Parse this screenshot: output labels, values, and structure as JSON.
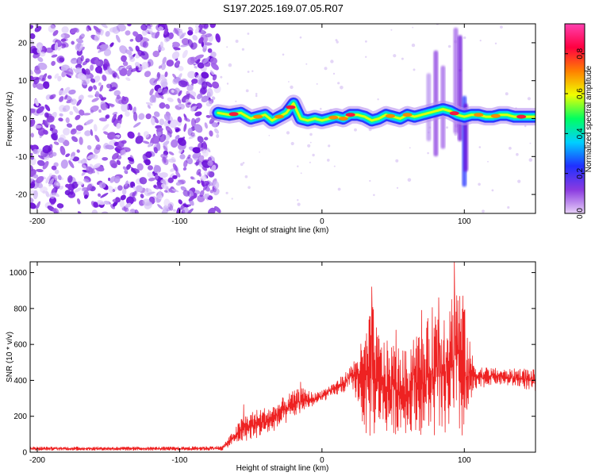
{
  "title": "S197.2025.169.07.05.R07",
  "chart_data": [
    {
      "type": "heatmap",
      "xlabel": "Height of straight line (km)",
      "ylabel": "Frequency (Hz)",
      "xlim": [
        -205,
        150
      ],
      "ylim": [
        -25,
        25
      ],
      "xticks": [
        -200,
        -100,
        0,
        100
      ],
      "yticks": [
        -20,
        -10,
        0,
        10,
        20
      ],
      "colorbar": {
        "label": "Normalized spectral amplitude",
        "range": [
          0,
          0.95
        ],
        "ticks": [
          0.0,
          0.2,
          0.4,
          0.6,
          0.8
        ],
        "tick_labels": [
          "0.0",
          "0.2",
          "0.4",
          "0.6",
          "0.8"
        ],
        "colors": [
          "#e8d0f8",
          "#8a3ae0",
          "#2030ff",
          "#00d0ff",
          "#00ff60",
          "#f0ff00",
          "#ff8000",
          "#ff0040",
          "#ff40b0"
        ]
      },
      "noise_region": {
        "x_from": -205,
        "x_to": -73
      },
      "ridge": {
        "x": [
          -73,
          -65,
          -57,
          -50,
          -45,
          -40,
          -35,
          -30,
          -25,
          -20,
          -15,
          -10,
          -5,
          0,
          5,
          10,
          15,
          20,
          25,
          30,
          35,
          40,
          45,
          50,
          55,
          60,
          65,
          70,
          75,
          80,
          85,
          90,
          95,
          100,
          105,
          110,
          115,
          120,
          125,
          130,
          135,
          140,
          145,
          150
        ],
        "y": [
          1.5,
          1.0,
          1.5,
          0.0,
          0.5,
          1.0,
          -0.5,
          0.5,
          1.5,
          4.0,
          0.0,
          -0.5,
          0.0,
          -0.5,
          0.0,
          0.5,
          0.0,
          1.0,
          1.0,
          0.5,
          -0.5,
          0.0,
          1.0,
          0.5,
          0.0,
          1.0,
          0.5,
          1.0,
          1.5,
          2.0,
          2.5,
          2.0,
          1.0,
          0.5,
          1.0,
          1.0,
          0.5,
          0.5,
          1.0,
          1.0,
          0.5,
          0.5,
          0.5,
          0.5
        ]
      }
    },
    {
      "type": "line",
      "xlabel": "Height of straight line (km)",
      "ylabel": "SNR (10 * v/v)",
      "xlim": [
        -205,
        150
      ],
      "ylim": [
        0,
        1060
      ],
      "xticks": [
        -200,
        -100,
        0,
        100
      ],
      "yticks": [
        0,
        200,
        400,
        600,
        800,
        1000
      ],
      "series": [
        {
          "color": "#ee2222",
          "envelope_x": [
            -205,
            -150,
            -100,
            -70,
            -63,
            -55,
            -45,
            -35,
            -25,
            -15,
            -5,
            5,
            15,
            20,
            25,
            30,
            35,
            40,
            45,
            50,
            55,
            60,
            65,
            70,
            75,
            80,
            85,
            90,
            95,
            100,
            105,
            110,
            120,
            130,
            140,
            150
          ],
          "envelope_lo": [
            10,
            10,
            10,
            10,
            40,
            60,
            80,
            110,
            160,
            220,
            260,
            300,
            330,
            360,
            280,
            100,
            60,
            140,
            110,
            90,
            120,
            100,
            130,
            90,
            110,
            60,
            80,
            110,
            70,
            40,
            280,
            350,
            380,
            370,
            360,
            330
          ],
          "envelope_hi": [
            30,
            30,
            30,
            35,
            110,
            210,
            240,
            260,
            320,
            360,
            330,
            370,
            430,
            480,
            560,
            660,
            840,
            660,
            620,
            620,
            580,
            560,
            720,
            640,
            760,
            870,
            820,
            880,
            1000,
            820,
            560,
            480,
            470,
            460,
            470,
            460
          ],
          "peaks": [
            {
              "x": -55,
              "y": 265
            },
            {
              "x": -15,
              "y": 390
            },
            {
              "x": 25,
              "y": 500
            },
            {
              "x": 35,
              "y": 920
            },
            {
              "x": 52,
              "y": 680
            },
            {
              "x": 70,
              "y": 790
            },
            {
              "x": 82,
              "y": 860
            },
            {
              "x": 93,
              "y": 1060
            },
            {
              "x": 99,
              "y": 870
            }
          ]
        }
      ]
    }
  ]
}
